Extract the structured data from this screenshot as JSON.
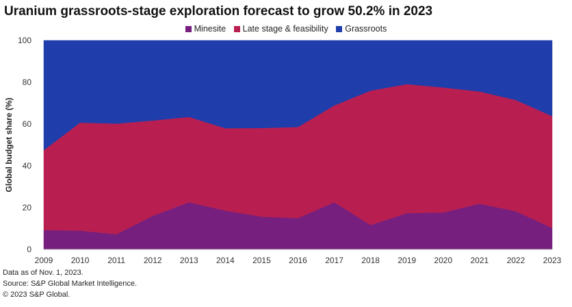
{
  "chart_data": {
    "type": "area",
    "stacked": true,
    "title": "Uranium grassroots-stage exploration forecast to grow 50.2% in 2023",
    "xlabel": "",
    "ylabel": "Global budget share (%)",
    "ylim": [
      0,
      100
    ],
    "yticks": [
      "0",
      "20",
      "40",
      "60",
      "80",
      "100"
    ],
    "categories": [
      "2009",
      "2010",
      "2011",
      "2012",
      "2013",
      "2014",
      "2015",
      "2016",
      "2017",
      "2018",
      "2019",
      "2020",
      "2021",
      "2022",
      "2023"
    ],
    "legend_position": "top-center",
    "series": [
      {
        "name": "Minesite",
        "color": "#771f7e",
        "values": [
          9.3,
          9.0,
          7.3,
          16.1,
          22.6,
          18.6,
          15.7,
          15.0,
          22.6,
          11.7,
          17.4,
          17.7,
          21.9,
          18.3,
          10.3
        ]
      },
      {
        "name": "Late stage & feasibility",
        "color": "#b81f50",
        "values": [
          38.2,
          51.7,
          52.9,
          45.6,
          40.8,
          39.4,
          42.4,
          43.6,
          46.3,
          64.3,
          61.7,
          59.8,
          53.7,
          53.2,
          53.5
        ]
      },
      {
        "name": "Grassroots",
        "color": "#1f3dab",
        "values": [
          52.5,
          39.3,
          39.8,
          38.3,
          36.6,
          42.0,
          41.9,
          41.4,
          31.1,
          24.0,
          20.9,
          22.5,
          24.4,
          28.5,
          36.2
        ]
      }
    ]
  },
  "footnotes": [
    "Data as of Nov. 1, 2023.",
    "Source: S&P Global Market Intelligence.",
    "© 2023 S&P Global."
  ]
}
